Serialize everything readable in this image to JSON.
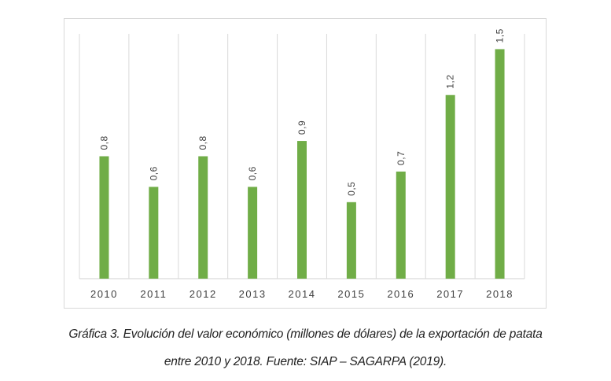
{
  "chart_data": {
    "type": "bar",
    "title": "",
    "xlabel": "",
    "ylabel": "",
    "categories": [
      "2010",
      "2011",
      "2012",
      "2013",
      "2014",
      "2015",
      "2016",
      "2017",
      "2018"
    ],
    "values": [
      0.8,
      0.6,
      0.8,
      0.6,
      0.9,
      0.5,
      0.7,
      1.2,
      1.5
    ],
    "data_labels": [
      "0,8",
      "0,6",
      "0,8",
      "0,6",
      "0,9",
      "0,5",
      "0,7",
      "1,2",
      "1,5"
    ],
    "ylim": [
      0,
      1.6
    ],
    "y_axis_visible": false,
    "grid": "vertical category separators",
    "legend": "none",
    "bar_color": "#70AD47",
    "grid_color": "#d9d9d9"
  },
  "caption": {
    "line1": "Gráfica 3. Evolución del valor económico (millones de dólares) de la exportación de patata",
    "line2": "entre 2010 y 2018. Fuente: SIAP – SAGARPA (2019)."
  }
}
